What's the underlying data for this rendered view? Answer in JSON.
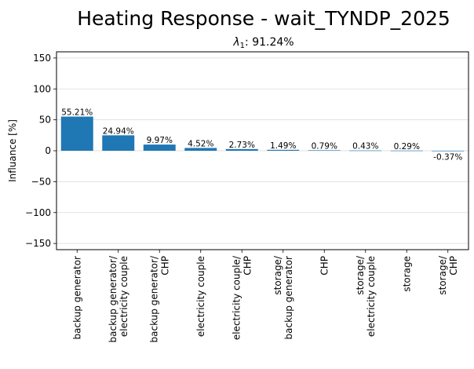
{
  "chart_data": {
    "type": "bar",
    "title": "Heating Response - wait_TYNDP_2025",
    "subtitle_symbol": "λ",
    "subtitle_sub": "1",
    "subtitle_value": ": 91.24%",
    "ylabel": "Influance [%]",
    "xlabel": "",
    "ylim": [
      -160,
      160
    ],
    "yticks": [
      -150,
      -100,
      -50,
      0,
      50,
      100,
      150
    ],
    "grid": "horizontal",
    "bar_color": "#1f77b4",
    "categories": [
      [
        "backup generator"
      ],
      [
        "backup generator/",
        "electricity couple"
      ],
      [
        "backup generator/",
        "CHP"
      ],
      [
        "electricity couple"
      ],
      [
        "electricity couple/",
        "CHP"
      ],
      [
        "storage/",
        "backup generator"
      ],
      [
        "CHP"
      ],
      [
        "storage/",
        "electricity couple"
      ],
      [
        "storage"
      ],
      [
        "storage/",
        "CHP"
      ]
    ],
    "values": [
      55.21,
      24.94,
      9.97,
      4.52,
      2.73,
      1.49,
      0.79,
      0.43,
      0.29,
      -0.37
    ],
    "data_labels": [
      "55.21%",
      "24.94%",
      "9.97%",
      "4.52%",
      "2.73%",
      "1.49%",
      "0.79%",
      "0.43%",
      "0.29%",
      "-0.37%"
    ]
  }
}
